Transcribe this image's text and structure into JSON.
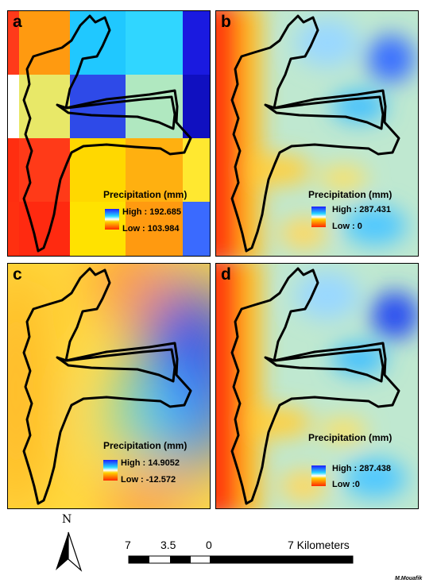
{
  "panels": [
    {
      "id": "a",
      "letter": "a",
      "legend_title": "Precipitation (mm)",
      "high": "High : 192.685",
      "low": "Low : 103.984"
    },
    {
      "id": "b",
      "letter": "b",
      "legend_title": "Precipitation (mm)",
      "high": "High : 287.431",
      "low": "Low : 0"
    },
    {
      "id": "c",
      "letter": "c",
      "legend_title": "Precipitation (mm)",
      "high": "High : 14.9052",
      "low": "Low : -12.572"
    },
    {
      "id": "d",
      "letter": "d",
      "legend_title": "Precipitation (mm)",
      "high": "High : 287.438",
      "low": "Low :0"
    }
  ],
  "north_label": "N",
  "scale": {
    "ticks": [
      "7",
      "3.5",
      "0",
      "7 Kilometers"
    ]
  },
  "author": "M.Mouafik",
  "colors": {
    "ramp_high": "#1c1cff",
    "ramp_mid": "#ffffff",
    "ramp_low": "#ff2a00",
    "outline": "#000000"
  }
}
